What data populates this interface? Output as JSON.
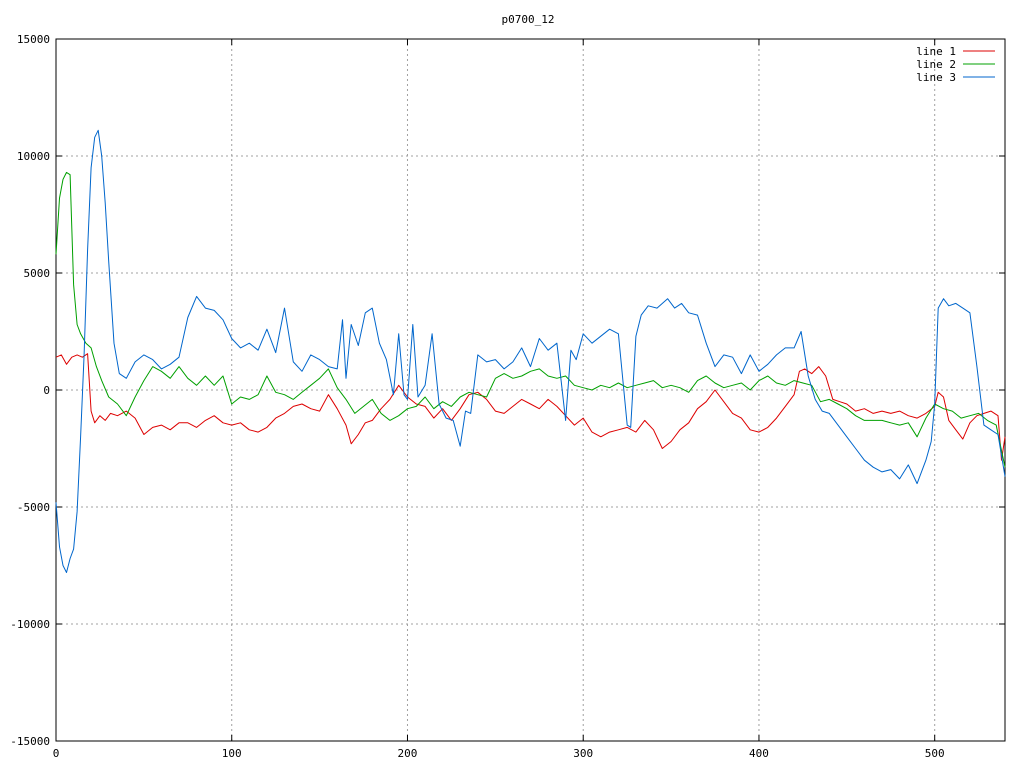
{
  "chart_data": {
    "type": "line",
    "title": "p0700_12",
    "xlabel": "",
    "ylabel": "",
    "xlim": [
      0,
      540
    ],
    "ylim": [
      -15000,
      15000
    ],
    "x_ticks": [
      0,
      100,
      200,
      300,
      400,
      500
    ],
    "y_ticks": [
      -15000,
      -10000,
      -5000,
      0,
      5000,
      10000,
      15000
    ],
    "grid": true,
    "legend_position": "top-right",
    "series": [
      {
        "name": "line 1",
        "color": "#dd0000",
        "x": [
          0,
          3,
          6,
          9,
          12,
          15,
          18,
          20,
          22,
          25,
          28,
          31,
          35,
          40,
          45,
          50,
          55,
          60,
          65,
          70,
          75,
          80,
          85,
          90,
          95,
          100,
          105,
          110,
          115,
          120,
          125,
          130,
          135,
          140,
          145,
          150,
          155,
          160,
          165,
          168,
          172,
          176,
          180,
          185,
          190,
          195,
          200,
          205,
          210,
          215,
          220,
          225,
          230,
          235,
          240,
          245,
          250,
          255,
          260,
          265,
          270,
          275,
          280,
          285,
          290,
          295,
          300,
          305,
          310,
          315,
          320,
          325,
          330,
          335,
          340,
          345,
          350,
          355,
          360,
          365,
          370,
          375,
          380,
          385,
          390,
          395,
          400,
          405,
          410,
          415,
          420,
          423,
          426,
          430,
          434,
          438,
          442,
          446,
          450,
          455,
          460,
          465,
          470,
          475,
          480,
          485,
          490,
          495,
          500,
          502,
          505,
          508,
          512,
          516,
          520,
          524,
          528,
          532,
          536,
          538,
          540
        ],
        "y": [
          1400,
          1500,
          1100,
          1400,
          1500,
          1400,
          1550,
          -900,
          -1400,
          -1100,
          -1300,
          -1000,
          -1100,
          -900,
          -1200,
          -1900,
          -1600,
          -1500,
          -1700,
          -1400,
          -1400,
          -1600,
          -1300,
          -1100,
          -1400,
          -1500,
          -1400,
          -1700,
          -1800,
          -1600,
          -1200,
          -1000,
          -700,
          -600,
          -800,
          -900,
          -200,
          -800,
          -1500,
          -2300,
          -1900,
          -1400,
          -1300,
          -800,
          -400,
          200,
          -300,
          -600,
          -700,
          -1200,
          -800,
          -1300,
          -800,
          -200,
          -100,
          -400,
          -900,
          -1000,
          -700,
          -400,
          -600,
          -800,
          -400,
          -700,
          -1100,
          -1500,
          -1200,
          -1800,
          -2000,
          -1800,
          -1700,
          -1600,
          -1800,
          -1300,
          -1700,
          -2500,
          -2200,
          -1700,
          -1400,
          -800,
          -500,
          0,
          -500,
          -1000,
          -1200,
          -1700,
          -1800,
          -1600,
          -1200,
          -700,
          -200,
          800,
          900,
          700,
          1000,
          600,
          -400,
          -500,
          -600,
          -900,
          -800,
          -1000,
          -900,
          -1000,
          -900,
          -1100,
          -1200,
          -1000,
          -700,
          -100,
          -300,
          -1300,
          -1700,
          -2100,
          -1400,
          -1100,
          -1000,
          -900,
          -1100,
          -3000,
          -2000
        ]
      },
      {
        "name": "line 2",
        "color": "#00a000",
        "x": [
          0,
          2,
          4,
          6,
          8,
          10,
          12,
          14,
          17,
          20,
          23,
          26,
          30,
          35,
          40,
          45,
          50,
          55,
          60,
          65,
          70,
          75,
          80,
          85,
          90,
          95,
          100,
          105,
          110,
          115,
          120,
          125,
          130,
          135,
          140,
          145,
          150,
          155,
          160,
          165,
          170,
          175,
          180,
          185,
          190,
          195,
          200,
          205,
          210,
          215,
          220,
          225,
          230,
          235,
          240,
          245,
          250,
          255,
          260,
          265,
          270,
          275,
          280,
          285,
          290,
          295,
          300,
          305,
          310,
          315,
          320,
          325,
          330,
          335,
          340,
          345,
          350,
          355,
          360,
          365,
          370,
          375,
          380,
          385,
          390,
          395,
          400,
          405,
          410,
          415,
          420,
          425,
          430,
          435,
          440,
          445,
          450,
          455,
          460,
          465,
          470,
          475,
          480,
          485,
          490,
          495,
          500,
          505,
          510,
          515,
          520,
          525,
          530,
          535,
          540
        ],
        "y": [
          5800,
          8200,
          9000,
          9300,
          9200,
          4500,
          2800,
          2400,
          2000,
          1800,
          1000,
          400,
          -300,
          -600,
          -1100,
          -300,
          400,
          1000,
          800,
          500,
          1000,
          500,
          200,
          600,
          200,
          600,
          -600,
          -300,
          -400,
          -200,
          600,
          -100,
          -200,
          -400,
          -100,
          200,
          500,
          900,
          100,
          -400,
          -1000,
          -700,
          -400,
          -1000,
          -1300,
          -1100,
          -800,
          -700,
          -300,
          -800,
          -500,
          -700,
          -300,
          -100,
          -200,
          -300,
          500,
          700,
          500,
          600,
          800,
          900,
          600,
          500,
          600,
          200,
          100,
          0,
          200,
          100,
          300,
          100,
          200,
          300,
          400,
          100,
          200,
          100,
          -100,
          400,
          600,
          300,
          100,
          200,
          300,
          0,
          400,
          600,
          300,
          200,
          400,
          300,
          200,
          -500,
          -400,
          -600,
          -800,
          -1100,
          -1300,
          -1300,
          -1300,
          -1400,
          -1500,
          -1400,
          -2000,
          -1200,
          -600,
          -800,
          -900,
          -1200,
          -1100,
          -1000,
          -1300,
          -1500,
          -3300
        ]
      },
      {
        "name": "line 3",
        "color": "#0066cc",
        "x": [
          0,
          2,
          4,
          6,
          8,
          10,
          12,
          14,
          16,
          18,
          20,
          22,
          24,
          26,
          28,
          30,
          33,
          36,
          40,
          45,
          50,
          55,
          60,
          65,
          70,
          75,
          80,
          85,
          90,
          95,
          100,
          105,
          110,
          115,
          120,
          125,
          130,
          135,
          140,
          145,
          150,
          155,
          160,
          163,
          165,
          168,
          172,
          176,
          180,
          184,
          188,
          192,
          195,
          198,
          200,
          203,
          206,
          210,
          214,
          218,
          222,
          226,
          230,
          233,
          236,
          240,
          245,
          250,
          255,
          260,
          265,
          270,
          275,
          280,
          285,
          290,
          293,
          296,
          300,
          305,
          310,
          315,
          320,
          325,
          327,
          330,
          333,
          337,
          342,
          348,
          352,
          356,
          360,
          365,
          370,
          375,
          380,
          385,
          390,
          395,
          400,
          405,
          410,
          415,
          420,
          424,
          428,
          432,
          436,
          440,
          445,
          450,
          455,
          460,
          465,
          470,
          475,
          480,
          485,
          490,
          495,
          498,
          500,
          502,
          505,
          508,
          512,
          516,
          520,
          524,
          528,
          532,
          536,
          540
        ],
        "y": [
          -4800,
          -6700,
          -7500,
          -7800,
          -7200,
          -6800,
          -5200,
          -2000,
          1500,
          6000,
          9500,
          10800,
          11100,
          10000,
          8000,
          5500,
          2000,
          700,
          500,
          1200,
          1500,
          1300,
          900,
          1100,
          1400,
          3100,
          4000,
          3500,
          3400,
          3000,
          2200,
          1800,
          2000,
          1700,
          2600,
          1600,
          3500,
          1200,
          800,
          1500,
          1300,
          1000,
          900,
          3000,
          500,
          2800,
          1900,
          3300,
          3500,
          2000,
          1300,
          -200,
          2400,
          -200,
          -400,
          2800,
          -300,
          200,
          2400,
          -600,
          -1200,
          -1300,
          -2400,
          -900,
          -1000,
          1500,
          1200,
          1300,
          900,
          1200,
          1800,
          1000,
          2200,
          1700,
          2000,
          -1300,
          1700,
          1300,
          2400,
          2000,
          2300,
          2600,
          2400,
          -1500,
          -1600,
          2300,
          3200,
          3600,
          3500,
          3900,
          3500,
          3700,
          3300,
          3200,
          2000,
          1000,
          1500,
          1400,
          700,
          1500,
          800,
          1100,
          1500,
          1800,
          1800,
          2500,
          600,
          -400,
          -900,
          -1000,
          -1500,
          -2000,
          -2500,
          -3000,
          -3300,
          -3500,
          -3400,
          -3800,
          -3200,
          -4000,
          -3000,
          -2200,
          -600,
          3500,
          3900,
          3600,
          3700,
          3500,
          3300,
          1000,
          -1500,
          -1700,
          -1900,
          -3700
        ]
      }
    ]
  }
}
